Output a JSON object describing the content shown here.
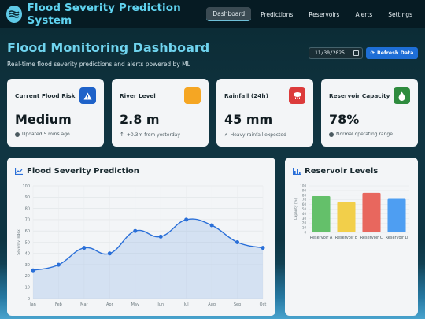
{
  "app": {
    "title": "Flood Severity Prediction System",
    "nav": [
      {
        "label": "Dashboard",
        "active": true
      },
      {
        "label": "Predictions",
        "active": false
      },
      {
        "label": "Reservoirs",
        "active": false
      },
      {
        "label": "Alerts",
        "active": false
      },
      {
        "label": "Settings",
        "active": false
      }
    ]
  },
  "header": {
    "title": "Flood Monitoring Dashboard",
    "subtitle": "Real-time flood severity predictions and alerts powered by ML",
    "date_value": "11/30/2025",
    "refresh_label": "Refresh Data"
  },
  "stats": [
    {
      "label": "Current Flood Risk",
      "value": "Medium",
      "note": "Updated 5 mins ago",
      "icon": "warning-icon",
      "icon_color": "#1e62c9"
    },
    {
      "label": "River Level",
      "value": "2.8 m",
      "note": "+0.3m from yesterday",
      "icon": "water-icon",
      "icon_color": "#f5a623"
    },
    {
      "label": "Rainfall (24h)",
      "value": "45 mm",
      "note": "Heavy rainfall expected",
      "icon": "rain-cloud-icon",
      "icon_color": "#dc3b3b"
    },
    {
      "label": "Reservoir Capacity",
      "value": "78%",
      "note": "Normal operating range",
      "icon": "droplet-icon",
      "icon_color": "#2e8b3e"
    }
  ],
  "chart_data": [
    {
      "type": "line",
      "title": "Flood Severity Prediction",
      "xlabel": "",
      "ylabel": "Severity Index",
      "categories": [
        "Jan",
        "Feb",
        "Mar",
        "Apr",
        "May",
        "Jun",
        "Jul",
        "Aug",
        "Sep",
        "Oct"
      ],
      "values": [
        25,
        30,
        45,
        40,
        60,
        55,
        70,
        65,
        50,
        45
      ],
      "ylim": [
        0,
        100
      ],
      "yticks": [
        0,
        10,
        20,
        30,
        40,
        50,
        60,
        70,
        80,
        90,
        100
      ],
      "grid": true,
      "color": "#2a6fd8"
    },
    {
      "type": "bar",
      "title": "Reservoir Levels",
      "xlabel": "",
      "ylabel": "Capacity (%)",
      "categories": [
        "Reservoir A",
        "Reservoir B",
        "Reservoir C",
        "Reservoir D"
      ],
      "values": [
        78,
        65,
        85,
        72
      ],
      "ylim": [
        0,
        100
      ],
      "yticks": [
        0,
        10,
        20,
        30,
        40,
        50,
        60,
        70,
        80,
        90,
        100
      ],
      "colors": [
        "#64c06a",
        "#f2cf4a",
        "#e8675e",
        "#4e9ef2"
      ]
    }
  ]
}
